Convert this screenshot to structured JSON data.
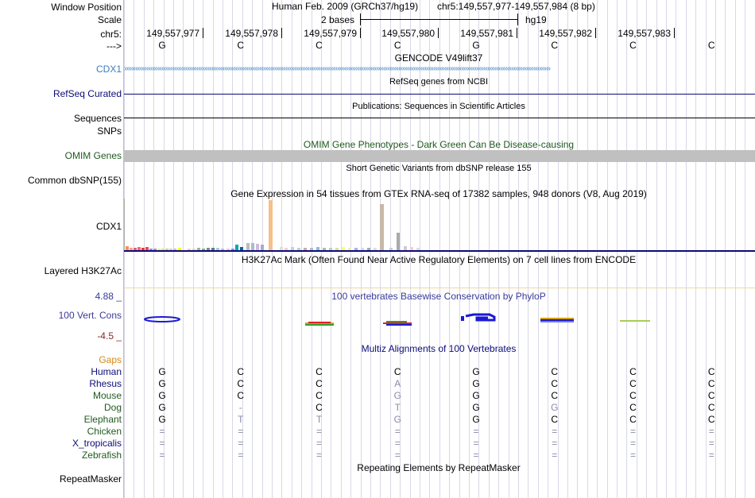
{
  "header": {
    "window_position_label": "Window Position",
    "assembly": "Human Feb. 2009 (GRCh37/hg19)",
    "position": "chr5:149,557,977-149,557,984 (8 bp)",
    "scale_label": "Scale",
    "scale_text": "2 bases",
    "scale_db": "hg19",
    "chrom_label": "chr5:",
    "strand_label": "--->",
    "coords": [
      "149,557,977",
      "149,557,978",
      "149,557,979",
      "149,557,980",
      "149,557,981",
      "149,557,982",
      "149,557,983"
    ],
    "bases": [
      "G",
      "C",
      "C",
      "C",
      "G",
      "C",
      "C",
      "C"
    ]
  },
  "tracks": {
    "gencode": {
      "title": "GENCODE V49lift37",
      "gene": "CDX1",
      "color": "#3b7dbf"
    },
    "refseq": {
      "title": "RefSeq genes from NCBI",
      "label": "RefSeq Curated",
      "color": "#0c0c78"
    },
    "publications": {
      "title": "Publications: Sequences in Scientific Articles",
      "label_line1": "Sequences",
      "label_line2": "SNPs"
    },
    "omim": {
      "title": "OMIM Gene Phenotypes - Dark Green Can Be Disease-causing",
      "label": "OMIM Genes",
      "color": "#1f5a1f"
    },
    "dbsnp": {
      "title": "Short Genetic Variants from dbSNP release 155",
      "label": "Common dbSNP(155)"
    },
    "gtex": {
      "title": "Gene Expression in 54 tissues from GTEx RNA-seq of 17382 samples, 948 donors (V8, Aug 2019)",
      "label": "CDX1"
    },
    "h3k27ac": {
      "title": "H3K27Ac Mark (Often Found Near Active Regulatory Elements) on 7 cell lines from ENCODE",
      "label": "Layered H3K27Ac"
    },
    "phylop": {
      "title": "100 vertebrates Basewise Conservation by PhyloP",
      "label": "100 Vert. Cons",
      "max": "4.88 _",
      "min": "-4.5 _",
      "color": "#3a3a99"
    },
    "multiz": {
      "title": "Multiz Alignments of 100 Vertebrates",
      "gaps_label": "Gaps"
    },
    "repeatmasker": {
      "title": "Repeating Elements by RepeatMasker",
      "label": "RepeatMasker"
    }
  },
  "species": [
    {
      "name": "Human",
      "color": "#0c0c78",
      "bases": [
        "G",
        "C",
        "C",
        "C",
        "G",
        "C",
        "C",
        "C"
      ],
      "faint": [
        false,
        false,
        false,
        false,
        false,
        false,
        false,
        false
      ]
    },
    {
      "name": "Rhesus",
      "color": "#0c0c78",
      "bases": [
        "G",
        "C",
        "C",
        "A",
        "G",
        "C",
        "C",
        "C"
      ],
      "faint": [
        false,
        false,
        false,
        true,
        false,
        false,
        false,
        false
      ]
    },
    {
      "name": "Mouse",
      "color": "#1f5a1f",
      "bases": [
        "G",
        "C",
        "C",
        "G",
        "G",
        "C",
        "C",
        "C"
      ],
      "faint": [
        false,
        false,
        false,
        true,
        false,
        false,
        false,
        false
      ]
    },
    {
      "name": "Dog",
      "color": "#1f5a1f",
      "bases": [
        "G",
        "-",
        "C",
        "T",
        "G",
        "G",
        "C",
        "C"
      ],
      "faint": [
        false,
        true,
        false,
        true,
        false,
        true,
        false,
        false
      ]
    },
    {
      "name": "Elephant",
      "color": "#1f5a1f",
      "bases": [
        "G",
        "T",
        "T",
        "G",
        "G",
        "C",
        "C",
        "C"
      ],
      "faint": [
        false,
        true,
        true,
        true,
        false,
        false,
        false,
        false
      ]
    },
    {
      "name": "Chicken",
      "color": "#1f5a1f",
      "bases": [
        "=",
        "=",
        "=",
        "=",
        "=",
        "=",
        "=",
        "="
      ],
      "faint": [
        true,
        true,
        true,
        true,
        true,
        true,
        true,
        true
      ]
    },
    {
      "name": "X_tropicalis",
      "color": "#0c0c78",
      "bases": [
        "=",
        "=",
        "=",
        "=",
        "=",
        "=",
        "=",
        "="
      ],
      "faint": [
        true,
        true,
        true,
        true,
        true,
        true,
        true,
        true
      ]
    },
    {
      "name": "Zebrafish",
      "color": "#1f5a1f",
      "bases": [
        "=",
        "=",
        "=",
        "=",
        "=",
        "=",
        "=",
        "="
      ],
      "faint": [
        true,
        true,
        true,
        true,
        true,
        true,
        true,
        true
      ]
    }
  ]
}
